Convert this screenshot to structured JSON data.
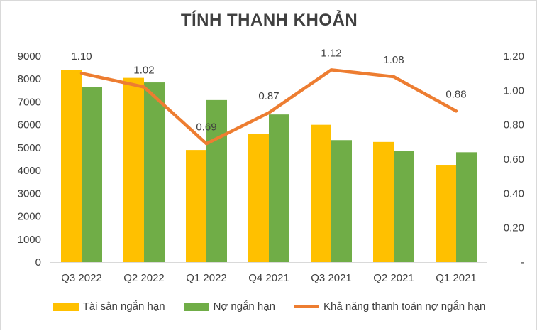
{
  "colors": {
    "series1": "#FFC000",
    "series2": "#70AD47",
    "series3": "#ED7D31",
    "text": "#404040"
  },
  "chart_data": {
    "type": "bar",
    "title": "TÍNH THANH KHOẢN",
    "categories": [
      "Q3 2022",
      "Q2 2022",
      "Q1 2022",
      "Q4 2021",
      "Q3 2021",
      "Q2 2021",
      "Q1 2021"
    ],
    "series": [
      {
        "name": "Tài sản ngắn hạn",
        "type": "bar",
        "axis": "left",
        "values": [
          8400,
          8050,
          4900,
          5600,
          6000,
          5250,
          4220
        ]
      },
      {
        "name": "Nợ ngắn hạn",
        "type": "bar",
        "axis": "left",
        "values": [
          7650,
          7850,
          7080,
          6450,
          5330,
          4870,
          4800
        ]
      },
      {
        "name": "Khả năng thanh toán nợ ngắn hạn",
        "type": "line",
        "axis": "right",
        "values": [
          1.1,
          1.02,
          0.69,
          0.87,
          1.12,
          1.08,
          0.88
        ],
        "labels": [
          "1.10",
          "1.02",
          "0.69",
          "0.87",
          "1.12",
          "1.08",
          "0.88"
        ]
      }
    ],
    "ylim": [
      0,
      9000
    ],
    "yticks": [
      "0",
      "1000",
      "2000",
      "3000",
      "4000",
      "5000",
      "6000",
      "7000",
      "8000",
      "9000"
    ],
    "y2lim": [
      0,
      1.2
    ],
    "y2ticks": [
      "-",
      "0.20",
      "0.40",
      "0.60",
      "0.80",
      "1.00",
      "1.20"
    ],
    "legend": "bottom",
    "grid": false
  }
}
